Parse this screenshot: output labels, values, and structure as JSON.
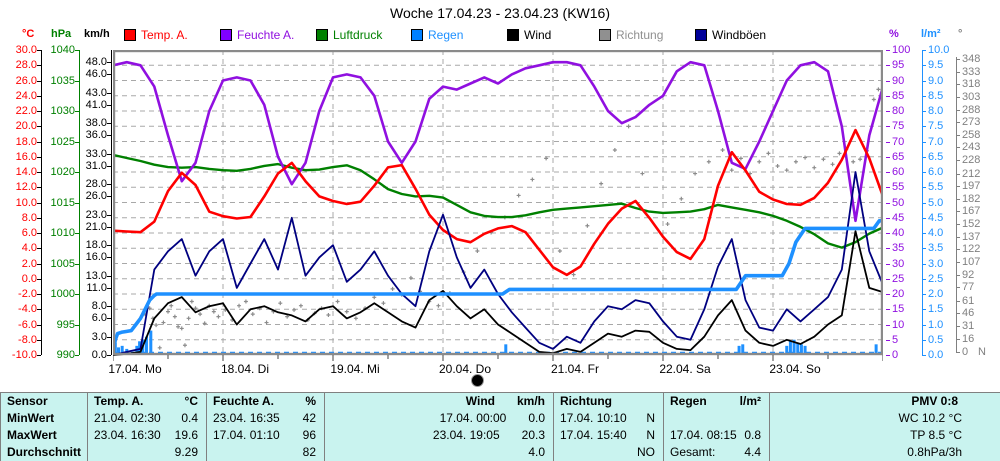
{
  "title": "Woche 17.04.23 - 23.04.23 (KW16)",
  "units": {
    "left": [
      {
        "text": "°C",
        "color": "#ff0000"
      },
      {
        "text": "hPa",
        "color": "#008000"
      },
      {
        "text": "km/h",
        "color": "#000000"
      }
    ],
    "right": [
      {
        "text": "%",
        "color": "#9010e0"
      },
      {
        "text": "l/m²",
        "color": "#1e90ff"
      },
      {
        "text": "°",
        "color": "#808080"
      }
    ]
  },
  "legend": [
    {
      "label": "Temp. A.",
      "color": "#ff0000",
      "text_color": "#ff0000"
    },
    {
      "label": "Feuchte A.",
      "color": "#8000ff",
      "text_color": "#9010e0"
    },
    {
      "label": "Luftdruck",
      "color": "#008000",
      "text_color": "#008000"
    },
    {
      "label": "Regen",
      "color": "#0080ff",
      "text_color": "#1e90ff"
    },
    {
      "label": "Wind",
      "color": "#000000",
      "text_color": "#000000"
    },
    {
      "label": "Richtung",
      "color": "#909090",
      "text_color": "#909090"
    },
    {
      "label": "Windböen",
      "color": "#000099",
      "text_color": "#000000"
    }
  ],
  "axes": {
    "degc": {
      "ticks": [
        "30.0",
        "28.0",
        "26.0",
        "24.0",
        "22.0",
        "20.0",
        "18.0",
        "16.0",
        "14.0",
        "12.0",
        "10.0",
        "8.0",
        "6.0",
        "4.0",
        "2.0",
        "0.0",
        "-2.0",
        "-4.0",
        "-6.0",
        "-8.0",
        "-10.0"
      ],
      "color": "#ff0000"
    },
    "hpa": {
      "ticks": [
        "1040",
        "1035",
        "1030",
        "1025",
        "1020",
        "1015",
        "1010",
        "1005",
        "1000",
        "995",
        "990"
      ],
      "color": "#008000"
    },
    "kmh": {
      "ticks": [
        "48.0",
        "46.0",
        "43.0",
        "41.0",
        "38.0",
        "36.0",
        "33.0",
        "31.0",
        "28.0",
        "26.0",
        "23.0",
        "21.0",
        "18.0",
        "16.0",
        "13.0",
        "11.0",
        "8.0",
        "6.0",
        "3.0",
        "0.0"
      ],
      "color": "#000000"
    },
    "pct": {
      "ticks": [
        "100",
        "95",
        "90",
        "85",
        "80",
        "75",
        "70",
        "65",
        "60",
        "55",
        "50",
        "45",
        "40",
        "35",
        "30",
        "25",
        "20",
        "15",
        "10",
        "5",
        "0"
      ],
      "color": "#9010e0"
    },
    "lpm": {
      "ticks": [
        "10.0",
        "9.5",
        "9.0",
        "8.5",
        "8.0",
        "7.5",
        "7.0",
        "6.5",
        "6.0",
        "5.5",
        "5.0",
        "4.5",
        "4.0",
        "3.5",
        "3.0",
        "2.5",
        "2.0",
        "1.5",
        "1.0",
        "0.5",
        "0.0"
      ],
      "color": "#1e90ff"
    },
    "deg": {
      "ticks": [
        "348",
        "333",
        "318",
        "303",
        "288",
        "273",
        "258",
        "243",
        "228",
        "212",
        "197",
        "182",
        "167",
        "152",
        "137",
        "122",
        "107",
        "92",
        "77",
        "61",
        "46",
        "31",
        "16",
        "0"
      ],
      "color": "#808080",
      "extra": "N"
    }
  },
  "x_axis": {
    "day_labels": [
      "17.04. Mo",
      "18.04. Di",
      "19.04. Mi",
      "20.04. Do",
      "21.04. Fr",
      "22.04. Sa",
      "23.04. So"
    ],
    "moon_phase_day": "20.04. Do"
  },
  "chart_data": {
    "type": "line",
    "x_unit": "hours since 17.04.23 00:00",
    "sample_step_hours": 3,
    "x_range_hours": [
      0,
      168
    ],
    "grid": "dashed gray, horizontal every 5% of scale, vertical at day starts",
    "series": [
      {
        "name": "Temp. A.",
        "axis": "°C",
        "axis_range": [
          -10,
          30
        ],
        "color": "#ff0000",
        "values": [
          6.3,
          6.2,
          6.1,
          7.5,
          11.5,
          13.9,
          12.3,
          8.8,
          8.2,
          7.9,
          8.1,
          10.8,
          13.8,
          15.2,
          12.8,
          10.8,
          10.2,
          9.8,
          10.1,
          12.2,
          14.6,
          14.9,
          11.8,
          8.4,
          6.4,
          5.2,
          4.8,
          5.9,
          6.6,
          6.9,
          6.1,
          3.8,
          1.5,
          0.5,
          1.6,
          4.6,
          7.2,
          9.2,
          10.2,
          8.0,
          5.5,
          3.5,
          2.6,
          5.2,
          12.2,
          16.6,
          14.2,
          11.4,
          10.4,
          9.8,
          9.7,
          10.6,
          12.6,
          15.6,
          19.5,
          15.8,
          10.8
        ]
      },
      {
        "name": "Feuchte A.",
        "axis": "%",
        "axis_range": [
          0,
          100
        ],
        "color": "#9010e0",
        "values": [
          95,
          96,
          95,
          88,
          72,
          57,
          63,
          80,
          90,
          91,
          90,
          82,
          65,
          56,
          63,
          80,
          91,
          92,
          91,
          85,
          70,
          63,
          70,
          84,
          88,
          87,
          89,
          91,
          89,
          92,
          94,
          95,
          96,
          96,
          95,
          88,
          80,
          76,
          78,
          82,
          85,
          93,
          96,
          95,
          80,
          63,
          61,
          70,
          80,
          90,
          95,
          96,
          93,
          75,
          44,
          72,
          88
        ]
      },
      {
        "name": "Luftdruck",
        "axis": "hPa",
        "axis_range": [
          990,
          1040
        ],
        "color": "#008000",
        "values": [
          1022.8,
          1022.3,
          1021.8,
          1021.2,
          1020.8,
          1020.7,
          1020.8,
          1020.5,
          1020.3,
          1020.2,
          1020.5,
          1021.0,
          1021.3,
          1020.7,
          1020.3,
          1020.4,
          1020.8,
          1021.1,
          1020.3,
          1018.8,
          1017.2,
          1016.4,
          1016.0,
          1016.1,
          1015.8,
          1014.6,
          1013.4,
          1012.8,
          1012.6,
          1012.6,
          1012.9,
          1013.4,
          1013.8,
          1014.0,
          1014.2,
          1014.4,
          1014.6,
          1014.8,
          1014.1,
          1013.5,
          1013.3,
          1013.4,
          1013.5,
          1013.9,
          1014.6,
          1014.2,
          1013.8,
          1013.4,
          1012.8,
          1012.0,
          1011.0,
          1009.8,
          1008.3,
          1007.6,
          1008.5,
          1009.9,
          1010.9
        ]
      },
      {
        "name": "Wind",
        "axis": "km/h",
        "axis_range": [
          0,
          50
        ],
        "color": "#000000",
        "values": [
          0.0,
          0.2,
          0.5,
          6.0,
          8.5,
          9.5,
          7.0,
          8.0,
          8.5,
          5.0,
          7.5,
          8.0,
          7.0,
          6.5,
          5.5,
          7.5,
          8.0,
          6.0,
          7.0,
          8.5,
          7.0,
          5.5,
          4.5,
          9.0,
          10.5,
          8.0,
          6.0,
          7.5,
          5.0,
          3.5,
          2.0,
          0.5,
          0.3,
          1.0,
          0.5,
          2.0,
          3.5,
          3.0,
          4.0,
          3.8,
          2.0,
          1.0,
          0.8,
          3.0,
          6.5,
          9.0,
          4.0,
          2.0,
          1.5,
          2.5,
          1.8,
          3.0,
          5.0,
          6.5,
          20.3,
          11.0,
          10.3
        ]
      },
      {
        "name": "Windböen",
        "axis": "km/h",
        "axis_range": [
          0,
          50
        ],
        "color": "#000080",
        "values": [
          0.0,
          0.5,
          1.0,
          14.0,
          17.0,
          19.0,
          13.0,
          17.0,
          19.0,
          11.0,
          15.0,
          19.0,
          14.0,
          22.5,
          13.0,
          16.0,
          18.0,
          12.0,
          14.0,
          17.0,
          13.0,
          10.0,
          8.0,
          17.0,
          23.0,
          16.0,
          11.0,
          14.0,
          10.0,
          7.0,
          4.5,
          2.0,
          1.0,
          3.0,
          2.0,
          5.5,
          8.0,
          7.5,
          9.0,
          8.5,
          5.5,
          3.0,
          2.5,
          7.5,
          14.5,
          19.0,
          9.0,
          4.5,
          4.0,
          7.5,
          5.5,
          7.5,
          9.5,
          14.0,
          30.0,
          17.0,
          11.5
        ]
      }
    ],
    "rain_cumulative": {
      "name": "Regen",
      "axis": "l/m²",
      "axis_range": [
        0,
        10
      ],
      "color": "#1e90ff",
      "points": [
        [
          0,
          0.05
        ],
        [
          0.5,
          0.5
        ],
        [
          1,
          0.7
        ],
        [
          2,
          0.75
        ],
        [
          4,
          0.8
        ],
        [
          5,
          1.0
        ],
        [
          6,
          1.2
        ],
        [
          7,
          1.5
        ],
        [
          8,
          1.8
        ],
        [
          9,
          1.95
        ],
        [
          9.5,
          2.0
        ],
        [
          85,
          2.0
        ],
        [
          86.5,
          2.15
        ],
        [
          136,
          2.15
        ],
        [
          138,
          2.6
        ],
        [
          146,
          2.6
        ],
        [
          147.5,
          3.0
        ],
        [
          149,
          3.7
        ],
        [
          151,
          4.15
        ],
        [
          166,
          4.15
        ],
        [
          167.2,
          4.4
        ],
        [
          168,
          4.4
        ]
      ]
    },
    "rain_bars": {
      "axis": "l/m²",
      "color": "#1e90ff",
      "points": [
        [
          0.5,
          0.4
        ],
        [
          1.2,
          0.25
        ],
        [
          2.0,
          0.3
        ],
        [
          3.0,
          0.2
        ],
        [
          5.2,
          0.3
        ],
        [
          5.8,
          0.45
        ],
        [
          6.5,
          0.5
        ],
        [
          7.3,
          0.6
        ],
        [
          8.25,
          0.8
        ],
        [
          85.7,
          0.35
        ],
        [
          136.6,
          0.3
        ],
        [
          137.4,
          0.35
        ],
        [
          147,
          0.3
        ],
        [
          147.8,
          0.45
        ],
        [
          148.6,
          0.5
        ],
        [
          149.4,
          0.4
        ],
        [
          150.2,
          0.35
        ],
        [
          151,
          0.3
        ],
        [
          166.5,
          0.35
        ]
      ]
    },
    "direction_scatter": {
      "name": "Richtung",
      "axis": "°",
      "axis_range": [
        0,
        360
      ],
      "color": "#8c8c8c",
      "points": [
        [
          7,
          45
        ],
        [
          8,
          52
        ],
        [
          8.7,
          40
        ],
        [
          9.4,
          32
        ],
        [
          10.2,
          5
        ],
        [
          11,
          35
        ],
        [
          12,
          48
        ],
        [
          12.7,
          55
        ],
        [
          13.5,
          42
        ],
        [
          14.2,
          30
        ],
        [
          15,
          28
        ],
        [
          15.7,
          8
        ],
        [
          16.5,
          40
        ],
        [
          17.2,
          60
        ],
        [
          18,
          52
        ],
        [
          19,
          45
        ],
        [
          20,
          34
        ],
        [
          21,
          55
        ],
        [
          22,
          48
        ],
        [
          23,
          42
        ],
        [
          24.5,
          50
        ],
        [
          26,
          38
        ],
        [
          27.5,
          55
        ],
        [
          29,
          60
        ],
        [
          30.5,
          45
        ],
        [
          32,
          52
        ],
        [
          33.5,
          35
        ],
        [
          35,
          48
        ],
        [
          36.5,
          58
        ],
        [
          38,
          42
        ],
        [
          39.5,
          50
        ],
        [
          41,
          55
        ],
        [
          42.5,
          38
        ],
        [
          44,
          46
        ],
        [
          45.5,
          52
        ],
        [
          47,
          44
        ],
        [
          49,
          60
        ],
        [
          51,
          48
        ],
        [
          53,
          40
        ],
        [
          55,
          52
        ],
        [
          57,
          65
        ],
        [
          59,
          58
        ],
        [
          61,
          75
        ],
        [
          63,
          68
        ],
        [
          65,
          88
        ],
        [
          67,
          72
        ],
        [
          69,
          60
        ],
        [
          71,
          55
        ],
        [
          73.5,
          70
        ],
        [
          76.5,
          95
        ],
        [
          79.5,
          120
        ],
        [
          82.5,
          142
        ],
        [
          85.5,
          160
        ],
        [
          88.5,
          186
        ],
        [
          91.5,
          205
        ],
        [
          94.5,
          230
        ],
        [
          97.5,
          120
        ],
        [
          100.5,
          92
        ],
        [
          103.5,
          150
        ],
        [
          106.5,
          200
        ],
        [
          109.5,
          240
        ],
        [
          112.5,
          268
        ],
        [
          115.5,
          212
        ],
        [
          121,
          152
        ],
        [
          124,
          182
        ],
        [
          127,
          212
        ],
        [
          130,
          226
        ],
        [
          133,
          240
        ],
        [
          135,
          216
        ],
        [
          137,
          230
        ],
        [
          139,
          212
        ],
        [
          141,
          226
        ],
        [
          143,
          236
        ],
        [
          145,
          221
        ],
        [
          147,
          216
        ],
        [
          149,
          226
        ],
        [
          151,
          231
        ],
        [
          153,
          219
        ],
        [
          155,
          229
        ],
        [
          157,
          223
        ],
        [
          158.5,
          236
        ],
        [
          160,
          241
        ],
        [
          161.5,
          226
        ],
        [
          163,
          229
        ],
        [
          164.5,
          239
        ],
        [
          166,
          300
        ],
        [
          167,
          312
        ]
      ]
    }
  },
  "table": {
    "row_headers": [
      "Sensor",
      "MinWert",
      "MaxWert",
      "Durchschnitt"
    ],
    "columns": [
      {
        "name": "Temp. A.",
        "unit": "°C",
        "min_when": "21.04.  02:30",
        "min_val": "0.4",
        "max_when": "23.04.  16:30",
        "max_val": "19.6",
        "avg_label": "",
        "avg_val": "9.29"
      },
      {
        "name": "Feuchte A.",
        "unit": "%",
        "min_when": "23.04.  16:35",
        "min_val": "42",
        "max_when": "17.04.  01:10",
        "max_val": "96",
        "avg_label": "",
        "avg_val": "82"
      },
      {
        "name": "Wind",
        "unit": "km/h",
        "min_when": "17.04.  00:00",
        "min_val": "0.0",
        "max_when": "23.04.  19:05",
        "max_val": "20.3",
        "avg_label": "",
        "avg_val": "4.0"
      },
      {
        "name": "Richtung",
        "unit": "",
        "min_when": "17.04.  10:10",
        "min_val": "N",
        "max_when": "17.04.  15:40",
        "max_val": "N",
        "avg_label": "",
        "avg_val": "NO"
      },
      {
        "name": "Regen",
        "unit": "l/m²",
        "min_when": "",
        "min_val": "",
        "max_when": "17.04.  08:15",
        "max_val": "0.8",
        "avg_label": "Gesamt:",
        "avg_val": "4.4"
      },
      {
        "name": "PMV 0:8",
        "unit": "",
        "lines": [
          "WC 10.2 °C",
          "TP 8.5 °C",
          "0.8hPa/3h"
        ]
      }
    ]
  }
}
